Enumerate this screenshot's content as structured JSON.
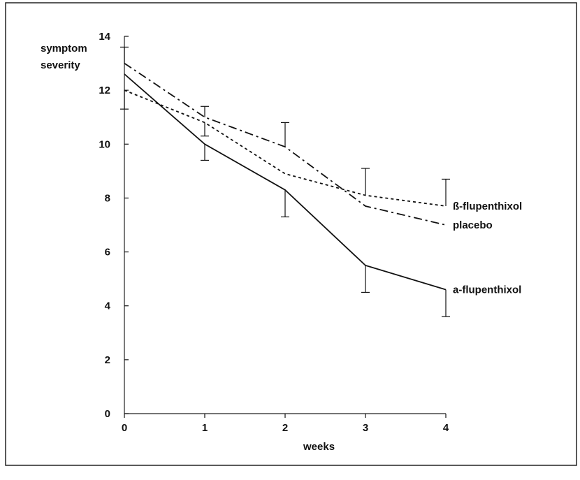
{
  "chart_data": {
    "type": "line",
    "ylabel_lines": [
      "symptom",
      "severity"
    ],
    "xlabel": "weeks",
    "x": [
      0,
      1,
      2,
      3,
      4
    ],
    "xlim": [
      0,
      4
    ],
    "ylim": [
      0,
      14
    ],
    "xticks": [
      "0",
      "1",
      "2",
      "3",
      "4"
    ],
    "yticks": [
      "0",
      "2",
      "4",
      "6",
      "8",
      "10",
      "12",
      "14"
    ],
    "grid": false,
    "series": [
      {
        "name": "ß-flupenthixol",
        "style": "dotted",
        "values": [
          12.0,
          10.8,
          8.9,
          8.1,
          7.7
        ],
        "error_low": [
          11.3,
          10.3,
          null,
          null,
          null
        ],
        "error_high": [
          null,
          null,
          null,
          9.1,
          8.7
        ]
      },
      {
        "name": "placebo",
        "style": "dash-dot",
        "values": [
          13.0,
          11.0,
          9.9,
          7.7,
          7.0
        ],
        "error_low": [
          null,
          null,
          null,
          null,
          null
        ],
        "error_high": [
          13.6,
          11.4,
          10.8,
          null,
          null
        ]
      },
      {
        "name": "a-flupenthixol",
        "style": "solid",
        "values": [
          12.6,
          10.0,
          8.3,
          5.5,
          4.6
        ],
        "error_low": [
          null,
          9.4,
          7.3,
          4.5,
          3.6
        ],
        "error_high": [
          null,
          null,
          null,
          null,
          null
        ]
      }
    ],
    "colors": {
      "line": "#111111",
      "frame": "#222222",
      "background": "#ffffff"
    }
  }
}
